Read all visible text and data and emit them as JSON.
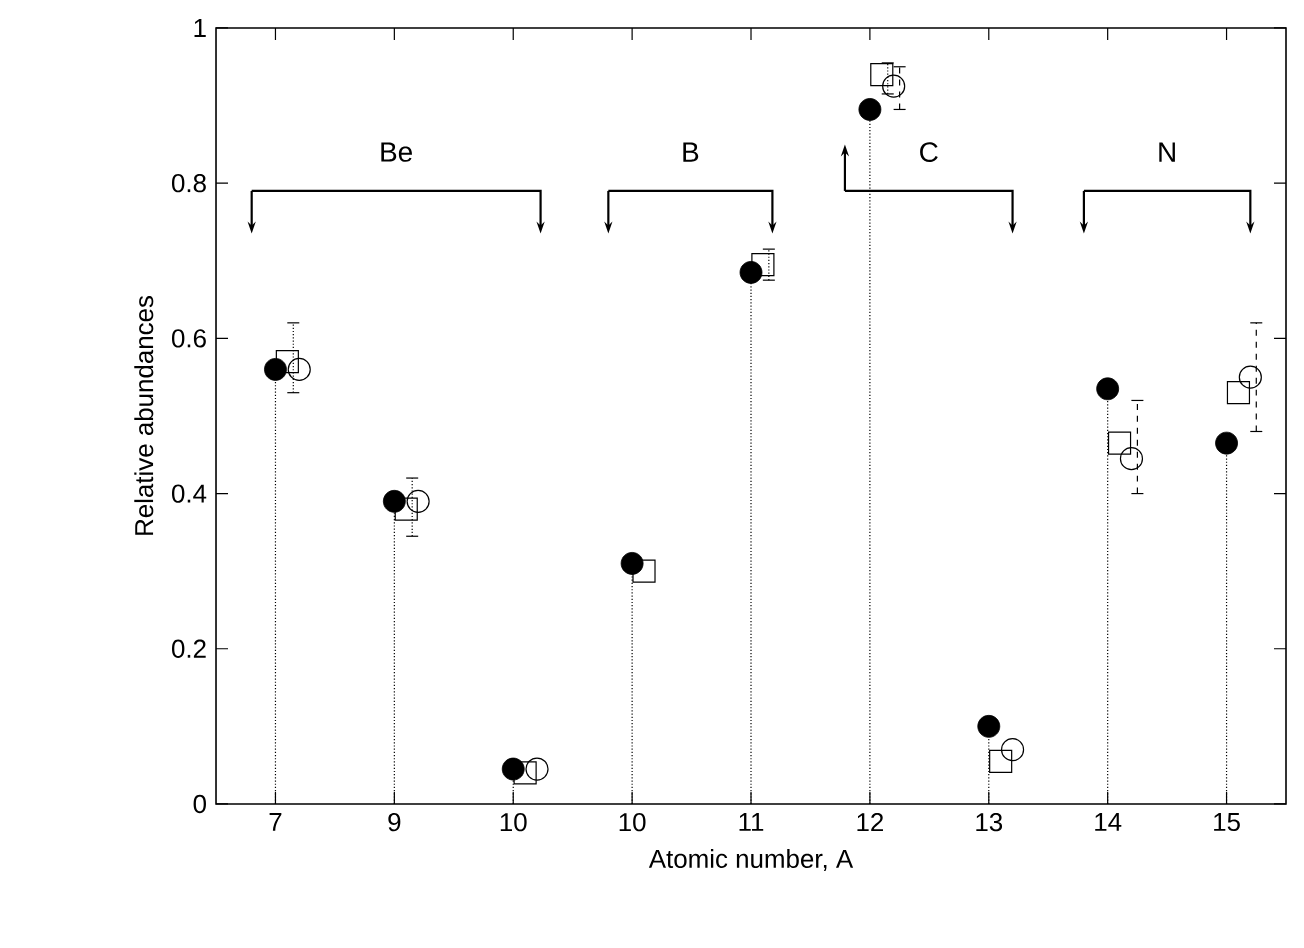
{
  "chart_data": {
    "type": "scatter",
    "xlabel": "Atomic number, A",
    "ylabel": "Relative abundances",
    "categories": [
      "7",
      "9",
      "10",
      "10",
      "11",
      "12",
      "13",
      "14",
      "15"
    ],
    "series": [
      {
        "type": "lollipop",
        "color": "#000000",
        "marker": "circle",
        "line_style": "dotted",
        "values": [
          0.56,
          0.39,
          0.045,
          0.31,
          0.685,
          0.895,
          0.1,
          0.535,
          0.465
        ]
      },
      {
        "color": "#000000",
        "marker": "square",
        "values": [
          0.57,
          0.38,
          0.04,
          0.3,
          0.695,
          0.94,
          0.055,
          0.465,
          0.53
        ],
        "errors": [
          [
            0.53,
            0.62
          ],
          [
            0.345,
            0.42
          ],
          null,
          null,
          [
            0.675,
            0.715
          ],
          [
            0.915,
            0.955
          ],
          null,
          null,
          null
        ]
      },
      {
        "color": "#000000",
        "marker": "circle",
        "values": [
          0.56,
          0.39,
          0.045,
          null,
          null,
          0.925,
          0.07,
          0.445,
          0.55
        ],
        "errors": [
          null,
          null,
          null,
          null,
          null,
          [
            0.895,
            0.95
          ],
          null,
          [
            0.4,
            0.52
          ],
          [
            0.48,
            0.62
          ]
        ]
      }
    ],
    "ylim": [
      0,
      1
    ],
    "yticks": [
      0,
      0.2,
      0.4,
      0.6,
      0.8,
      1
    ],
    "annotations": [
      "Be",
      "B",
      "C",
      "N"
    ]
  }
}
